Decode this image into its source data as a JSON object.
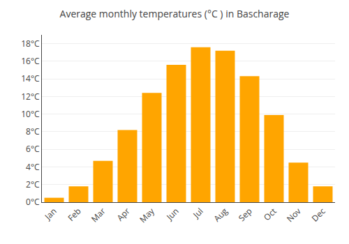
{
  "chart_data": {
    "type": "bar",
    "title": "Average monthly temperatures (°C ) in Bascharage",
    "categories": [
      "Jan",
      "Feb",
      "Mar",
      "Apr",
      "May",
      "Jun",
      "Jul",
      "Aug",
      "Sep",
      "Oct",
      "Nov",
      "Dec"
    ],
    "values": [
      0.5,
      1.8,
      4.7,
      8.2,
      12.4,
      15.6,
      17.6,
      17.2,
      14.3,
      9.9,
      4.5,
      1.8
    ],
    "color": "#FFA500",
    "ylim": [
      0,
      19
    ],
    "yticks": [
      {
        "value": 0,
        "label": "0°C"
      },
      {
        "value": 2,
        "label": "2°C"
      },
      {
        "value": 4,
        "label": "4°C"
      },
      {
        "value": 6,
        "label": "6°C"
      },
      {
        "value": 8,
        "label": "8°C"
      },
      {
        "value": 10,
        "label": "10°C"
      },
      {
        "value": 12,
        "label": "12°C"
      },
      {
        "value": 14,
        "label": "14°C"
      },
      {
        "value": 16,
        "label": "16°C"
      },
      {
        "value": 18,
        "label": "18°C"
      }
    ],
    "grid": true
  }
}
